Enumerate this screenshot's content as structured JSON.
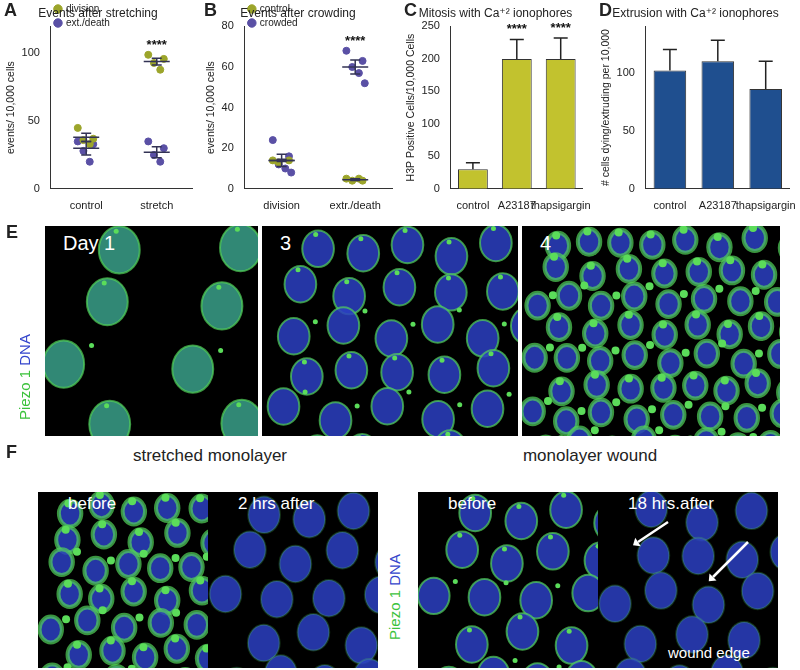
{
  "chart_data": [
    {
      "type": "scatter",
      "panel": "A",
      "title": "Events after stretching",
      "y_label": "events/ 10,000 cells",
      "categories": [
        "control",
        "stretch"
      ],
      "series": [
        {
          "name": "division",
          "color": "#9ca52b",
          "values": [
            [
              45,
              37,
              36,
              33
            ],
            [
              99,
              96,
              93,
              88
            ]
          ],
          "means": [
            38,
            94
          ],
          "errors": [
            3,
            2.5
          ]
        },
        {
          "name": "ext./death",
          "color": "#5a50a5",
          "values": [
            [
              35,
              33,
              28,
              20
            ],
            [
              35,
              30,
              25,
              20
            ]
          ],
          "means": [
            30,
            27
          ],
          "errors": [
            5,
            4
          ]
        }
      ],
      "ylim": [
        0,
        120
      ],
      "yticks": [
        0,
        50,
        100
      ],
      "grid": false,
      "legend": "top left",
      "annotations": [
        {
          "category": "stretch",
          "text": "****"
        }
      ]
    },
    {
      "type": "scatter",
      "panel": "B",
      "title": "Events after crowding",
      "y_label": "events/ 10,000 cells",
      "categories": [
        "division",
        "extr./death"
      ],
      "series": [
        {
          "name": "control",
          "color": "#9ca52b",
          "values": [
            [
              14,
              14,
              13
            ],
            [
              5,
              4,
              4,
              5
            ]
          ],
          "means": [
            14,
            4.5
          ],
          "errors": [
            0.5,
            0.4
          ]
        },
        {
          "name": "crowded",
          "color": "#5a50a5",
          "values": [
            [
              24,
              16,
              12,
              10,
              8
            ],
            [
              68,
              63,
              60,
              57,
              52
            ]
          ],
          "means": [
            14,
            60
          ],
          "errors": [
            3,
            3.5
          ]
        }
      ],
      "ylim": [
        0,
        80
      ],
      "yticks": [
        0,
        20,
        40,
        60,
        80
      ],
      "grid": false,
      "legend": "top left",
      "annotations": [
        {
          "category": "extr./death",
          "text": "****"
        }
      ]
    },
    {
      "type": "bar",
      "panel": "C",
      "title": "Mitosis with Ca⁺² ionophores",
      "y_label": "H3P Positive Cells/10,000 Cells",
      "categories": [
        "control",
        "A23187",
        "thapsigargin"
      ],
      "values": [
        30,
        200,
        200
      ],
      "errors": [
        10,
        30,
        32
      ],
      "color": "#c2c22e",
      "ylim": [
        0,
        250
      ],
      "yticks": [
        0,
        50,
        100,
        150,
        200,
        250
      ],
      "grid": false,
      "annotations": [
        {
          "category": "A23187",
          "text": "****"
        },
        {
          "category": "thapsigargin",
          "text": "****"
        }
      ]
    },
    {
      "type": "bar",
      "panel": "D",
      "title": "Extrusion with Ca⁺² ionophores",
      "y_label": "# cells dying/extruding per 10,000",
      "categories": [
        "control",
        "A23187",
        "thapsigargin"
      ],
      "values": [
        102,
        110,
        86
      ],
      "errors": [
        18,
        18,
        24
      ],
      "color": "#1f4f8f",
      "ylim": [
        0,
        140
      ],
      "yticks": [
        0,
        50,
        100
      ],
      "grid": false
    }
  ],
  "images": {
    "E": {
      "panel": "E",
      "frames": [
        "Day 1",
        "3",
        "4"
      ],
      "stain": [
        "Piezo 1",
        "DNA"
      ]
    },
    "F": {
      "panel": "F",
      "stain": [
        "Piezo 1",
        "DNA"
      ],
      "groups": [
        {
          "title": "stretched monolayer",
          "frames": [
            "before",
            "2 hrs after"
          ]
        },
        {
          "title": "monolayer wound",
          "frames": [
            "before",
            "18 hrs.after"
          ],
          "note": "wound edge"
        }
      ]
    }
  }
}
